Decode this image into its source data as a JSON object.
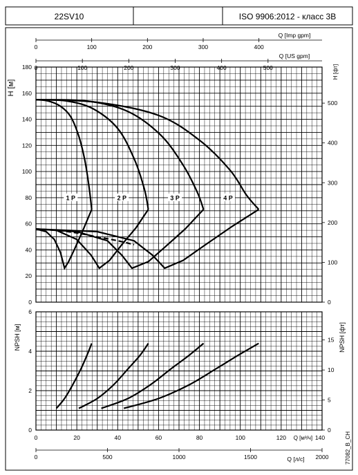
{
  "header": {
    "model": "22SV10",
    "standard": "ISO 9906:2012 - класс 3B"
  },
  "chart_data": [
    {
      "type": "line",
      "name": "head-chart",
      "ylabel": "H [м]",
      "ylabel_right": "H [фт]",
      "ylim": [
        0,
        180
      ],
      "yticks": [
        0,
        20,
        40,
        60,
        80,
        100,
        120,
        140,
        160,
        180
      ],
      "ylim_right_ft": [
        0,
        590.55
      ],
      "yticks_right": [
        0,
        100,
        200,
        300,
        400,
        500
      ],
      "xlim": [
        0,
        140
      ],
      "grid": true,
      "top_axes": [
        {
          "label": "Q [Imp gpm]",
          "ticks": [
            0,
            100,
            200,
            300,
            400
          ],
          "factor": 3.6661
        },
        {
          "label": "Q [US gpm]",
          "ticks": [
            0,
            100,
            200,
            300,
            400,
            500
          ],
          "factor": 4.4029
        }
      ],
      "series": [
        {
          "name": "1 P",
          "head": {
            "x": [
              0,
              6,
              12,
              17,
              21,
              24,
              26,
              27.3
            ],
            "y": [
              155,
              154,
              150,
              142,
              127,
              108,
              88,
              71
            ]
          },
          "efficiency": {
            "x": [
              0,
              5,
              9,
              12,
              14,
              16,
              19,
              23,
              27.3
            ],
            "y": [
              56,
              54,
              48,
              38,
              26,
              31,
              41,
              55,
              71
            ]
          },
          "label_pos": [
            17,
            80
          ]
        },
        {
          "name": "2 P",
          "head": {
            "x": [
              0,
              15,
              28,
              40,
              48,
              53,
              55
            ],
            "y": [
              155,
              154,
              148,
              133,
              110,
              87,
              71
            ]
          },
          "efficiency": {
            "x": [
              0,
              10,
              20,
              27,
              31,
              36,
              42,
              49,
              55
            ],
            "y": [
              56,
              55,
              48,
              36,
              26,
              32,
              44,
              57,
              71
            ]
          },
          "label_pos": [
            42,
            80
          ]
        },
        {
          "name": "3 P",
          "head": {
            "x": [
              0,
              25,
              45,
              61,
              72,
              79,
              82
            ],
            "y": [
              155,
              154,
              146,
              128,
              105,
              84,
              71
            ]
          },
          "efficiency": {
            "x": [
              0,
              20,
              35,
              42,
              47,
              55,
              63,
              73,
              82
            ],
            "y": [
              56,
              54,
              47,
              36,
              26,
              31,
              42,
              56,
              71
            ]
          },
          "label_pos": [
            68,
            80
          ]
        },
        {
          "name": "4 P",
          "head": {
            "x": [
              0,
              30,
              60,
              80,
              95,
              103,
              109
            ],
            "y": [
              155,
              153,
              143,
              124,
              101,
              82,
              71
            ]
          },
          "efficiency": {
            "x": [
              0,
              30,
              48,
              57,
              63,
              72,
              83,
              96,
              109
            ],
            "y": [
              56,
              54,
              47,
              36,
              26,
              32,
              44,
              58,
              71
            ]
          },
          "label_pos": [
            94,
            80
          ]
        }
      ]
    },
    {
      "type": "line",
      "name": "npsh-chart",
      "ylabel": "NPSH [м]",
      "ylabel_right": "NPSH [фт]",
      "ylim": [
        0,
        6
      ],
      "yticks": [
        0,
        2,
        4,
        6
      ],
      "yticks_right": [
        0,
        5,
        10,
        15
      ],
      "xlim": [
        0,
        140
      ],
      "grid": true,
      "xlabel_m3h": "Q [м³/ч]",
      "xticks_m3h": [
        0,
        20,
        40,
        60,
        80,
        100,
        120,
        140
      ],
      "xlabel_ls": "Q [л/с]",
      "xticks_ls": [
        0,
        500,
        1000,
        1500,
        2000
      ],
      "series": [
        {
          "name": "1 P",
          "x": [
            10,
            14,
            18,
            22,
            25,
            27.3
          ],
          "y": [
            1.1,
            1.6,
            2.3,
            3.1,
            3.8,
            4.4
          ]
        },
        {
          "name": "2 P",
          "x": [
            21,
            30,
            38,
            45,
            51,
            55
          ],
          "y": [
            1.1,
            1.6,
            2.3,
            3.1,
            3.8,
            4.4
          ]
        },
        {
          "name": "3 P",
          "x": [
            32,
            45,
            56,
            66,
            75,
            82
          ],
          "y": [
            1.1,
            1.6,
            2.3,
            3.1,
            3.8,
            4.4
          ]
        },
        {
          "name": "4 P",
          "x": [
            43,
            60,
            75,
            88,
            99,
            109
          ],
          "y": [
            1.1,
            1.6,
            2.3,
            3.1,
            3.8,
            4.4
          ]
        }
      ]
    }
  ],
  "footer_code": "77082_B_CH"
}
